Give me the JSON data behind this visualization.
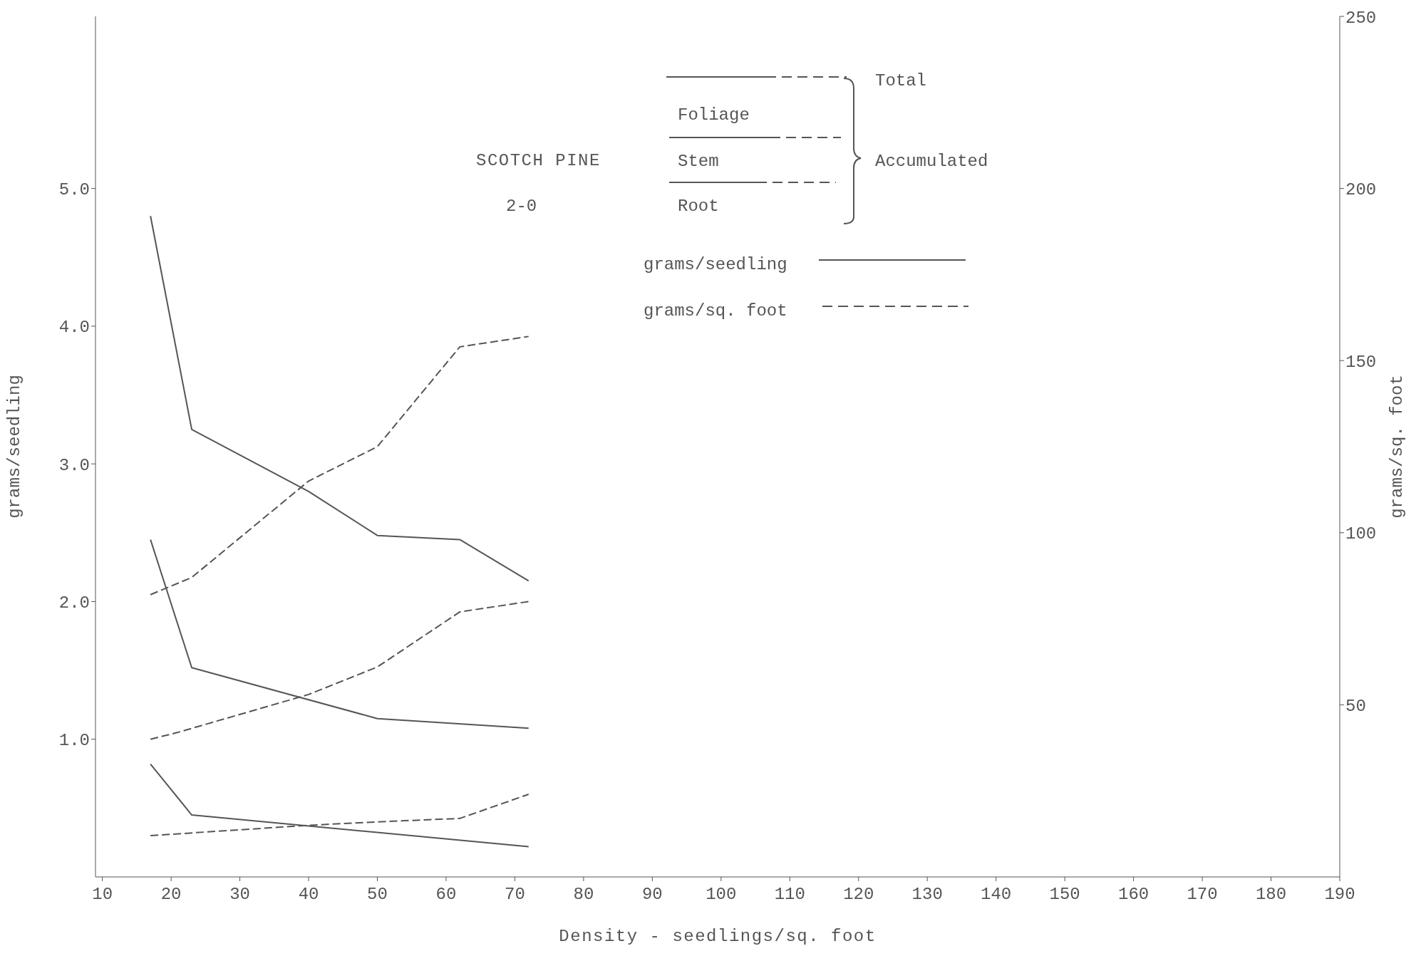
{
  "chart_data": {
    "type": "line",
    "title": "SCOTCH PINE",
    "subtitle": "2-0",
    "xlabel": "Density - seedlings/sq. foot",
    "ylabel": "grams/seedling",
    "y2label": "grams/sq. foot",
    "annotations": [
      "Total",
      "Foliage",
      "Stem",
      "Root",
      "Accumulated",
      "grams/seedling",
      "grams/sq. foot"
    ],
    "xlim": [
      9,
      190
    ],
    "xticks": [
      10,
      20,
      30,
      40,
      50,
      60,
      70,
      80,
      90,
      100,
      110,
      120,
      130,
      140,
      150,
      160,
      170,
      180,
      190
    ],
    "ylim": [
      0,
      6.25
    ],
    "yticks": [
      {
        "value": 1,
        "label": "1.0"
      },
      {
        "value": 2,
        "label": "2.0"
      },
      {
        "value": 3,
        "label": "3.0"
      },
      {
        "value": 4,
        "label": "4.0"
      },
      {
        "value": 5,
        "label": "5.0"
      }
    ],
    "y2lim": [
      0,
      250
    ],
    "y2ticks": [
      50,
      100,
      150,
      200,
      250
    ],
    "marker": "none",
    "series": [
      {
        "color": "#555555",
        "line_style": "solid",
        "x": [
          17,
          23,
          40,
          50,
          62,
          72
        ],
        "values": [
          4.8,
          3.25,
          2.8,
          2.48,
          2.45,
          2.15
        ]
      },
      {
        "color": "#555555",
        "line_style": "solid",
        "x": [
          17,
          23,
          50,
          72
        ],
        "values": [
          2.45,
          1.52,
          1.15,
          1.08
        ]
      },
      {
        "color": "#555555",
        "line_style": "solid",
        "x": [
          17,
          23,
          72
        ],
        "values": [
          0.82,
          0.45,
          0.22
        ]
      },
      {
        "color": "#555555",
        "line_style": "dashed",
        "axis": "y2",
        "x": [
          17,
          23,
          40,
          50,
          62,
          72
        ],
        "values": [
          82,
          87,
          115,
          125,
          154,
          157
        ]
      },
      {
        "color": "#555555",
        "line_style": "dashed",
        "axis": "y2",
        "x": [
          17,
          21,
          40,
          50,
          62,
          72
        ],
        "values": [
          40,
          42,
          53,
          61,
          77,
          80
        ]
      },
      {
        "color": "#555555",
        "line_style": "dashed",
        "axis": "y2",
        "x": [
          17,
          40,
          50,
          62,
          72
        ],
        "values": [
          12,
          15,
          16,
          17,
          24
        ]
      }
    ]
  }
}
